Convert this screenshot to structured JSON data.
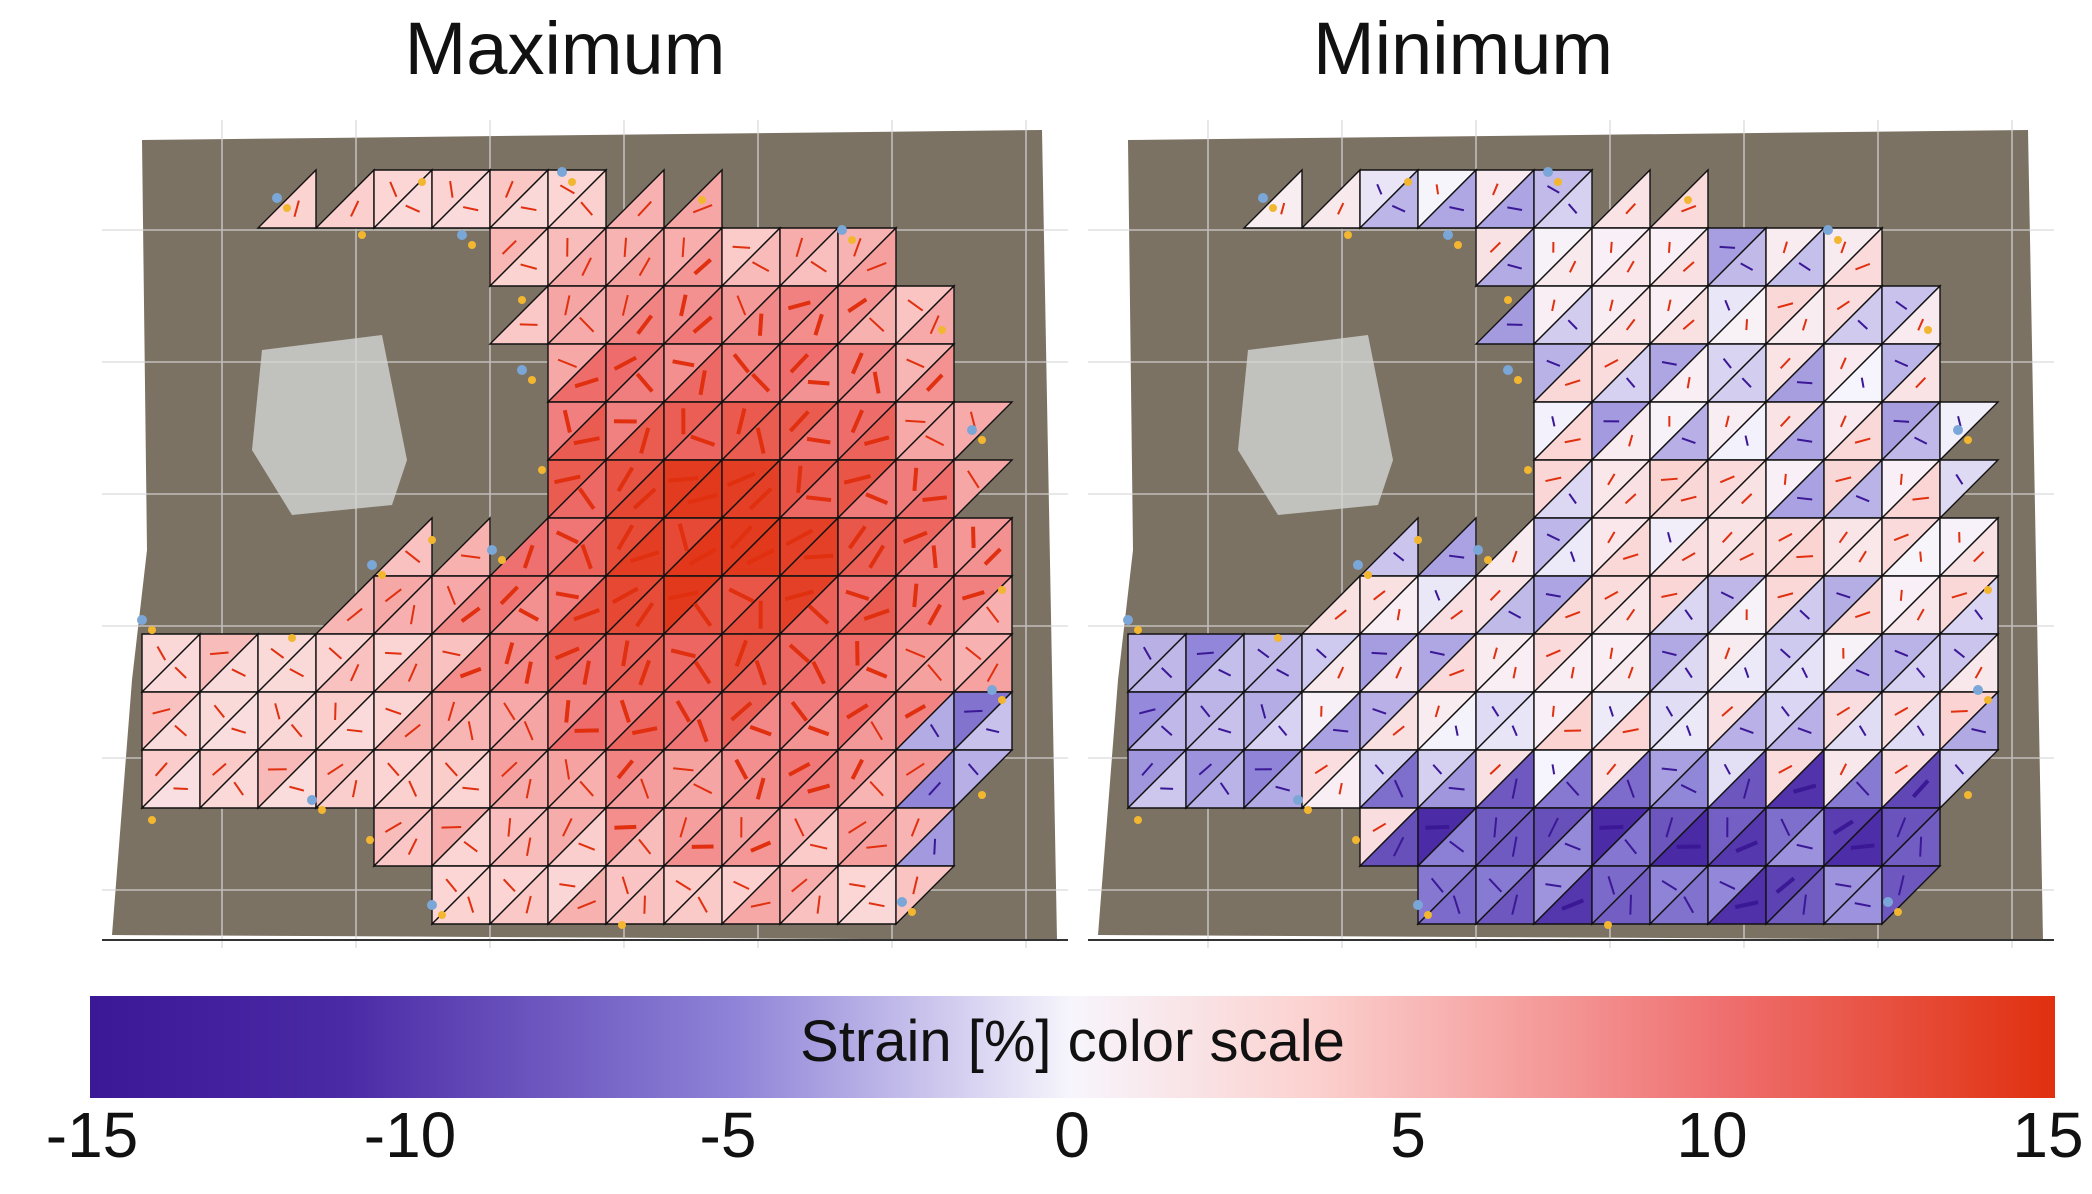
{
  "panels": [
    {
      "title": "Maximum"
    },
    {
      "title": "Minimum"
    }
  ],
  "colorbar": {
    "label": "Strain [%] color scale",
    "min": -15,
    "max": 15,
    "ticks": [
      "-15",
      "-10",
      "-5",
      "0",
      "5",
      "10",
      "15"
    ],
    "colors": {
      "negative": "#3b1896",
      "zero": "#f7f5fc",
      "positive": "#e0300f"
    }
  },
  "colors": {
    "background_photo": "#7c7264",
    "mesh_line": "#111111",
    "grid_line": "#d8d8d8",
    "marker": "#f2b630",
    "anchor": "#7aa7d8"
  }
}
